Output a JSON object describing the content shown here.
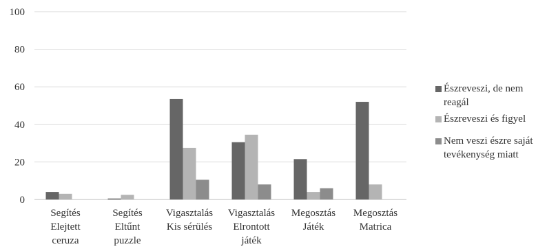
{
  "chart_data": {
    "type": "bar",
    "categories": [
      [
        "Segítés",
        "Elejtett",
        "ceruza"
      ],
      [
        "Segítés",
        "Eltűnt",
        "puzzle"
      ],
      [
        "Vigasztalás",
        "Kis sérülés"
      ],
      [
        "Vigasztalás",
        "Elrontott",
        "játék"
      ],
      [
        "Megosztás",
        "Játék"
      ],
      [
        "Megosztás",
        "Matrica"
      ]
    ],
    "series": [
      {
        "name": "Észreveszi, de nem reagál",
        "color": "#666666",
        "values": [
          4,
          0.5,
          53.5,
          30.5,
          21.5,
          52
        ]
      },
      {
        "name": "Észreveszi és figyel",
        "color": "#b4b4b4",
        "values": [
          3,
          2.5,
          27.5,
          34.5,
          4,
          8
        ]
      },
      {
        "name": "Nem veszi észre saját tevékenység miatt",
        "color": "#8c8c8c",
        "values": [
          0,
          0,
          10.5,
          8,
          6,
          0
        ]
      }
    ],
    "ylim": [
      0,
      100
    ],
    "yticks": [
      0,
      20,
      40,
      60,
      80,
      100
    ],
    "xlabel": "",
    "ylabel": "",
    "title": "",
    "grid": true,
    "legend_position": "right"
  },
  "legend": {
    "items": [
      {
        "lines": [
          "Észreveszi, de nem",
          "reagál"
        ]
      },
      {
        "lines": [
          "Észreveszi és figyel"
        ]
      },
      {
        "lines": [
          "Nem veszi észre saját",
          "tevékenység miatt"
        ]
      }
    ]
  }
}
